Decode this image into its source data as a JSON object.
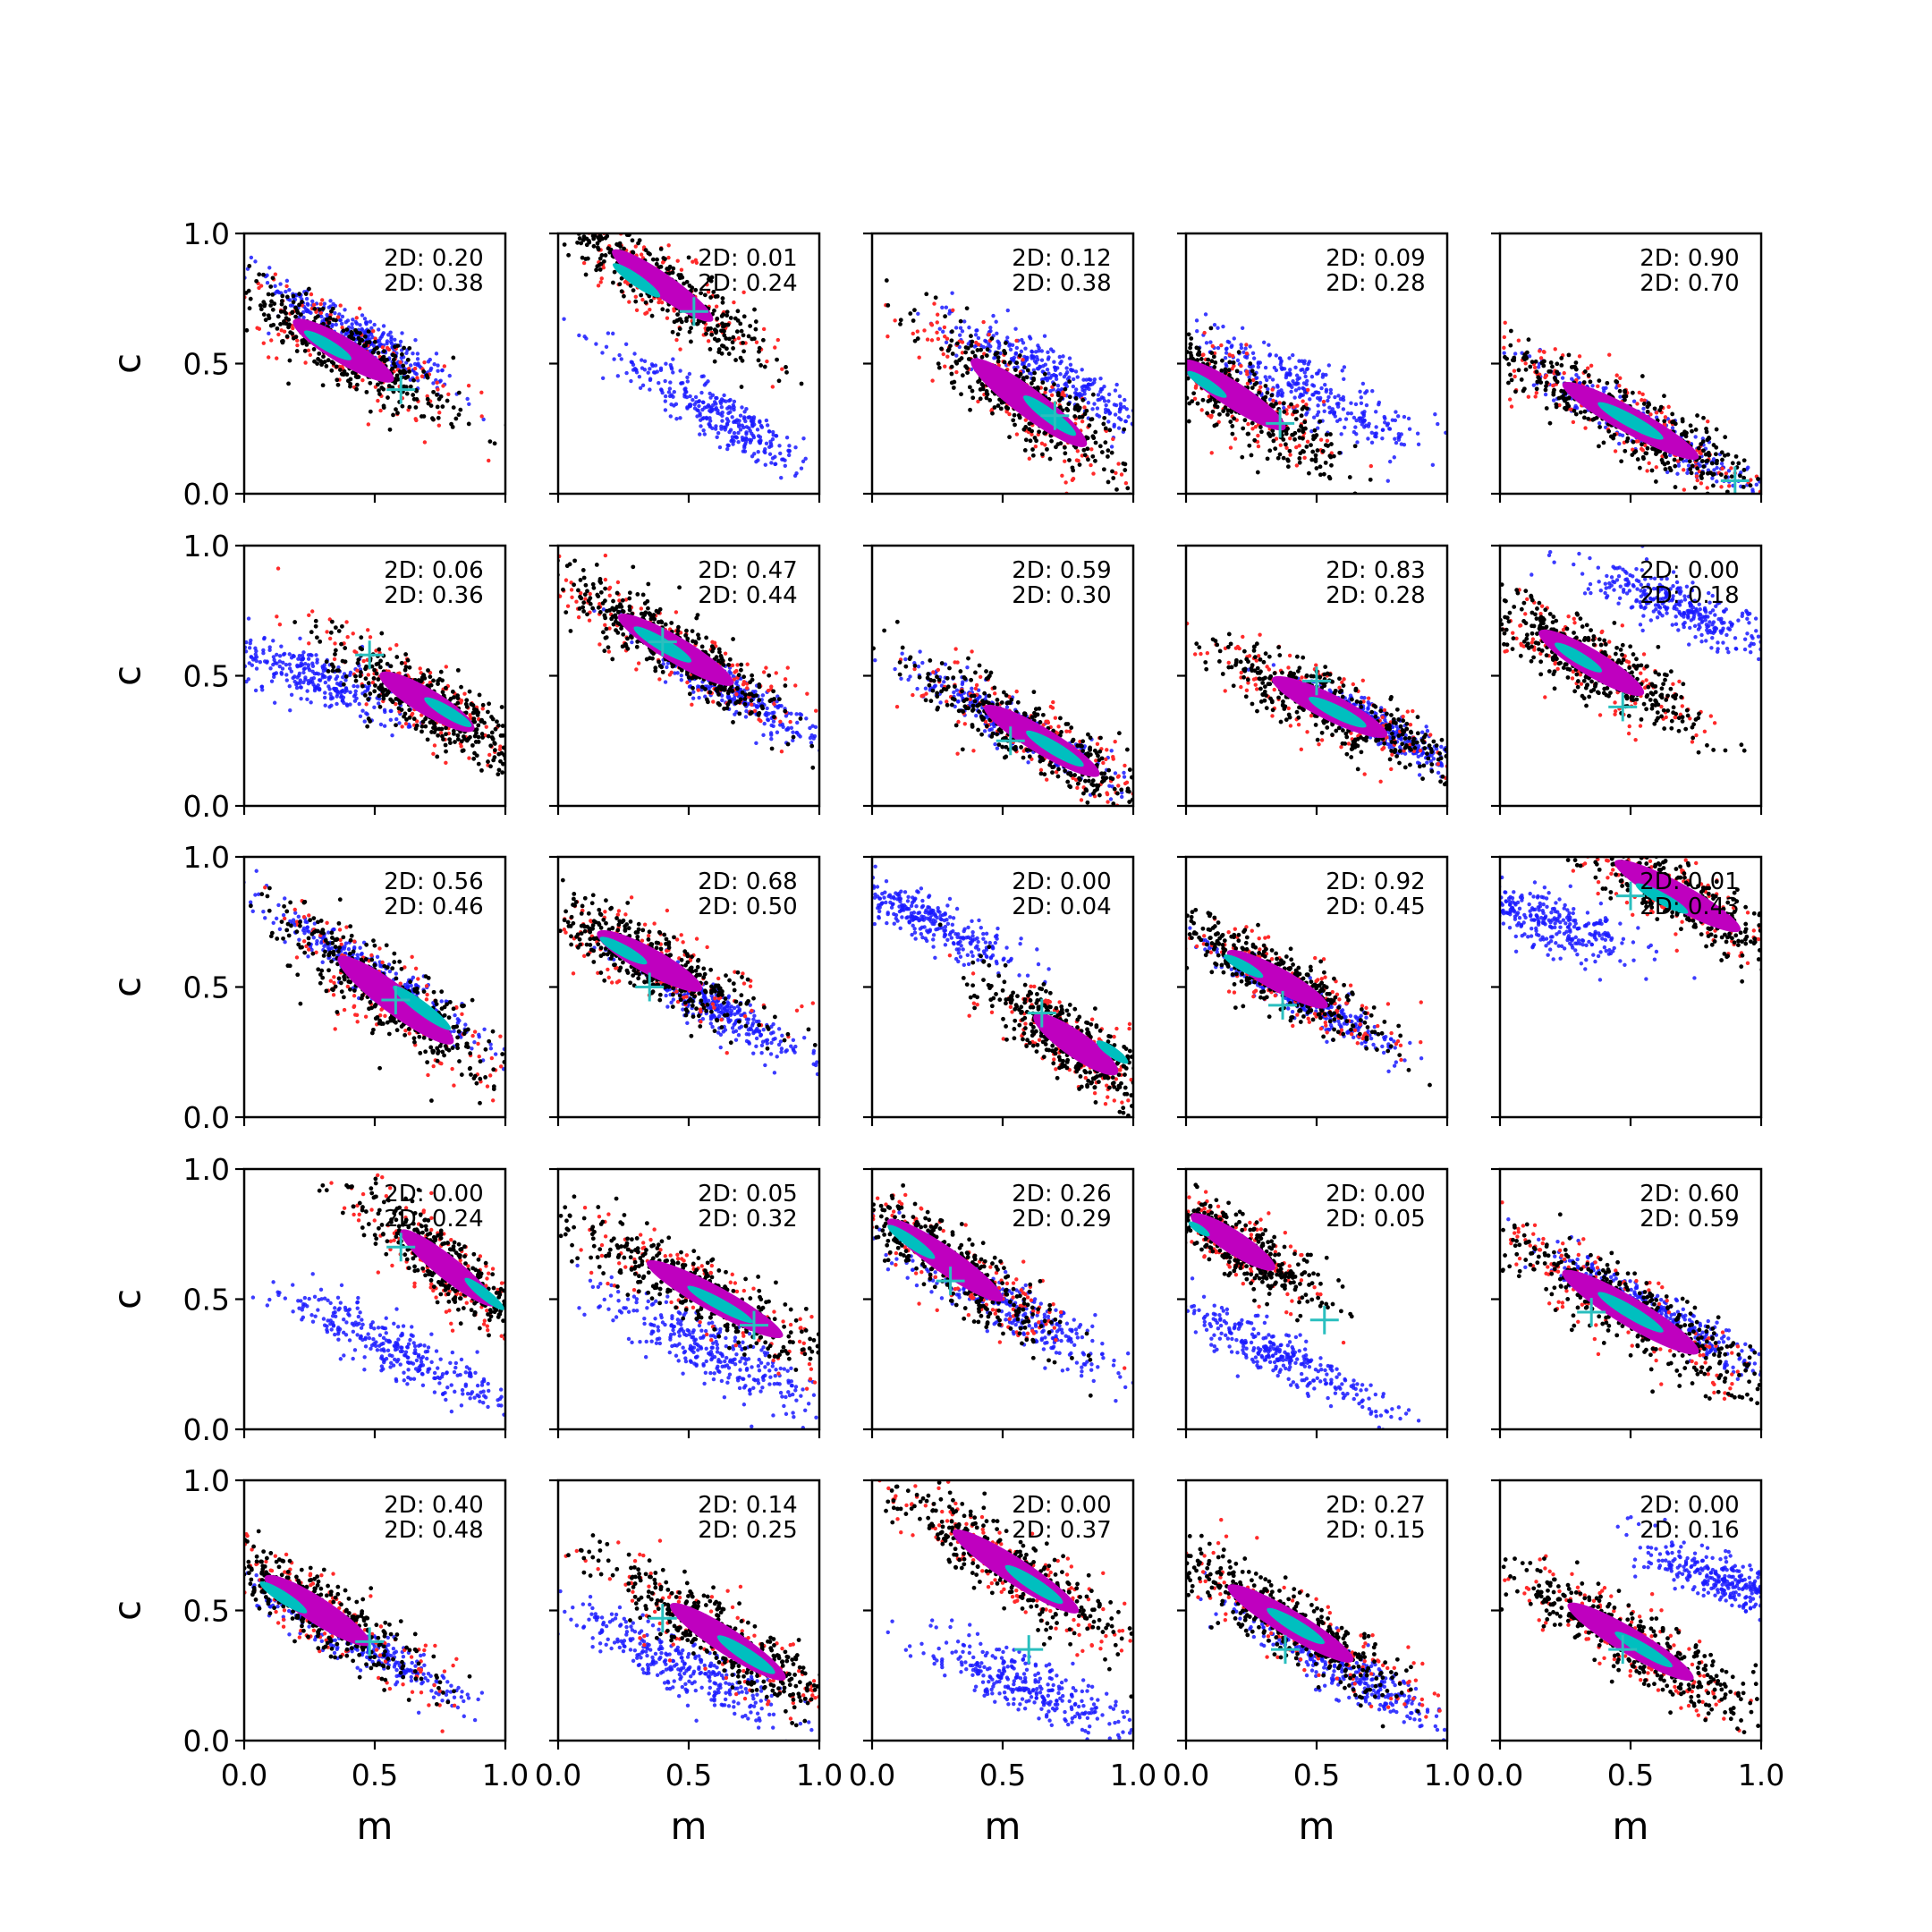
{
  "figure": {
    "xlabel": "m",
    "ylabel": "c",
    "xlim": [
      0,
      1
    ],
    "ylim": [
      0,
      1
    ],
    "xticks": [
      "0.0",
      "0.5",
      "1.0"
    ],
    "yticks": [
      "0.0",
      "0.5",
      "1.0"
    ],
    "colors": {
      "blue": "#1a1aff",
      "red": "#ff2a2a",
      "black": "#000000",
      "magenta": "#bf00bf",
      "cyan": "#00bfbf",
      "marker": "#2abfbf"
    },
    "marker_symbol": "plus"
  },
  "chart_data": [
    {
      "type": "scatter",
      "row": 0,
      "col": 0,
      "annotations": [
        "2D: 0.20",
        "2D: 0.38"
      ],
      "true_point": {
        "m": 0.6,
        "c": 0.4
      },
      "blue": {
        "cx": 0.45,
        "cy": 0.6,
        "slope": -0.6,
        "length": 0.45,
        "width": 0.09
      },
      "inner": {
        "cx": 0.38,
        "cy": 0.55,
        "slope": -0.6,
        "length": 0.48,
        "width": 0.1
      },
      "cyan": {
        "cx": 0.32,
        "cy": 0.57,
        "length": 0.18,
        "width": 0.045
      },
      "true_point_hidden": false
    },
    {
      "type": "scatter",
      "row": 0,
      "col": 1,
      "annotations": [
        "2D: 0.01",
        "2D: 0.24"
      ],
      "true_point": {
        "m": 0.52,
        "c": 0.7
      },
      "blue": {
        "cx": 0.62,
        "cy": 0.3,
        "slope": -0.6,
        "length": 0.5,
        "width": 0.1
      },
      "inner": {
        "cx": 0.4,
        "cy": 0.8,
        "slope": -0.7,
        "length": 0.48,
        "width": 0.09
      },
      "cyan": {
        "cx": 0.3,
        "cy": 0.82,
        "length": 0.18,
        "width": 0.045
      }
    },
    {
      "type": "scatter",
      "row": 0,
      "col": 2,
      "annotations": [
        "2D: 0.12",
        "2D: 0.38"
      ],
      "true_point": {
        "m": 0.7,
        "c": 0.3
      },
      "blue": {
        "cx": 0.7,
        "cy": 0.45,
        "slope": -0.55,
        "length": 0.55,
        "width": 0.11
      },
      "inner": {
        "cx": 0.6,
        "cy": 0.35,
        "slope": -0.75,
        "length": 0.55,
        "width": 0.11
      },
      "cyan": {
        "cx": 0.68,
        "cy": 0.3,
        "length": 0.2,
        "width": 0.05
      }
    },
    {
      "type": "scatter",
      "row": 0,
      "col": 3,
      "annotations": [
        "2D: 0.09",
        "2D: 0.28"
      ],
      "true_point": {
        "m": 0.36,
        "c": 0.27
      },
      "blue": {
        "cx": 0.45,
        "cy": 0.4,
        "slope": -0.5,
        "length": 0.6,
        "width": 0.11
      },
      "inner": {
        "cx": 0.18,
        "cy": 0.38,
        "slope": -0.65,
        "length": 0.5,
        "width": 0.1
      },
      "cyan": {
        "cx": 0.08,
        "cy": 0.42,
        "length": 0.15,
        "width": 0.04
      }
    },
    {
      "type": "scatter",
      "row": 0,
      "col": 4,
      "annotations": [
        "2D: 0.90",
        "2D: 0.70"
      ],
      "true_point": {
        "m": 0.9,
        "c": 0.05
      },
      "blue": {
        "cx": 0.55,
        "cy": 0.25,
        "slope": -0.55,
        "length": 0.6,
        "width": 0.08
      },
      "inner": {
        "cx": 0.5,
        "cy": 0.28,
        "slope": -0.55,
        "length": 0.65,
        "width": 0.1
      },
      "cyan": {
        "cx": 0.5,
        "cy": 0.28,
        "length": 0.25,
        "width": 0.05
      }
    },
    {
      "type": "scatter",
      "row": 1,
      "col": 0,
      "annotations": [
        "2D: 0.06",
        "2D: 0.36"
      ],
      "true_point": {
        "m": 0.48,
        "c": 0.58
      },
      "blue": {
        "cx": 0.25,
        "cy": 0.5,
        "slope": -0.4,
        "length": 0.45,
        "width": 0.12
      },
      "inner": {
        "cx": 0.7,
        "cy": 0.4,
        "slope": -0.6,
        "length": 0.45,
        "width": 0.1
      },
      "cyan": {
        "cx": 0.78,
        "cy": 0.36,
        "length": 0.18,
        "width": 0.045
      }
    },
    {
      "type": "scatter",
      "row": 1,
      "col": 1,
      "annotations": [
        "2D: 0.47",
        "2D: 0.44"
      ],
      "true_point": {
        "m": 0.4,
        "c": 0.63
      },
      "blue": {
        "cx": 0.65,
        "cy": 0.45,
        "slope": -0.6,
        "length": 0.45,
        "width": 0.08
      },
      "inner": {
        "cx": 0.45,
        "cy": 0.6,
        "slope": -0.6,
        "length": 0.55,
        "width": 0.1
      },
      "cyan": {
        "cx": 0.4,
        "cy": 0.62,
        "length": 0.22,
        "width": 0.05
      }
    },
    {
      "type": "scatter",
      "row": 1,
      "col": 2,
      "annotations": [
        "2D: 0.59",
        "2D: 0.30"
      ],
      "true_point": {
        "m": 0.53,
        "c": 0.25
      },
      "blue": {
        "cx": 0.55,
        "cy": 0.3,
        "slope": -0.55,
        "length": 0.5,
        "width": 0.08
      },
      "inner": {
        "cx": 0.65,
        "cy": 0.25,
        "slope": -0.6,
        "length": 0.55,
        "width": 0.1
      },
      "cyan": {
        "cx": 0.7,
        "cy": 0.22,
        "length": 0.22,
        "width": 0.05
      }
    },
    {
      "type": "scatter",
      "row": 1,
      "col": 3,
      "annotations": [
        "2D: 0.83",
        "2D: 0.28"
      ],
      "true_point": {
        "m": 0.5,
        "c": 0.48
      },
      "blue": {
        "cx": 0.75,
        "cy": 0.3,
        "slope": -0.55,
        "length": 0.4,
        "width": 0.07
      },
      "inner": {
        "cx": 0.55,
        "cy": 0.38,
        "slope": -0.5,
        "length": 0.55,
        "width": 0.1
      },
      "cyan": {
        "cx": 0.58,
        "cy": 0.36,
        "length": 0.22,
        "width": 0.05
      }
    },
    {
      "type": "scatter",
      "row": 1,
      "col": 4,
      "annotations": [
        "2D: 0.00",
        "2D: 0.18"
      ],
      "true_point": {
        "m": 0.47,
        "c": 0.38
      },
      "blue": {
        "cx": 0.7,
        "cy": 0.75,
        "slope": -0.4,
        "length": 0.45,
        "width": 0.1
      },
      "inner": {
        "cx": 0.35,
        "cy": 0.55,
        "slope": -0.6,
        "length": 0.5,
        "width": 0.1
      },
      "cyan": {
        "cx": 0.3,
        "cy": 0.57,
        "length": 0.18,
        "width": 0.045
      }
    },
    {
      "type": "scatter",
      "row": 2,
      "col": 0,
      "annotations": [
        "2D: 0.56",
        "2D: 0.46"
      ],
      "true_point": {
        "m": 0.58,
        "c": 0.45
      },
      "blue": {
        "cx": 0.5,
        "cy": 0.55,
        "slope": -0.65,
        "length": 0.55,
        "width": 0.08
      },
      "inner": {
        "cx": 0.58,
        "cy": 0.45,
        "slope": -0.75,
        "length": 0.55,
        "width": 0.11
      },
      "cyan": {
        "cx": 0.68,
        "cy": 0.42,
        "length": 0.22,
        "width": 0.05
      }
    },
    {
      "type": "scatter",
      "row": 2,
      "col": 1,
      "annotations": [
        "2D: 0.68",
        "2D: 0.50"
      ],
      "true_point": {
        "m": 0.35,
        "c": 0.5
      },
      "blue": {
        "cx": 0.6,
        "cy": 0.42,
        "slope": -0.55,
        "length": 0.45,
        "width": 0.08
      },
      "inner": {
        "cx": 0.35,
        "cy": 0.6,
        "slope": -0.55,
        "length": 0.5,
        "width": 0.1
      },
      "cyan": {
        "cx": 0.25,
        "cy": 0.64,
        "length": 0.18,
        "width": 0.045
      }
    },
    {
      "type": "scatter",
      "row": 2,
      "col": 2,
      "annotations": [
        "2D: 0.00",
        "2D: 0.04"
      ],
      "true_point": {
        "m": 0.65,
        "c": 0.4
      },
      "blue": {
        "cx": 0.2,
        "cy": 0.76,
        "slope": -0.45,
        "length": 0.45,
        "width": 0.09
      },
      "inner": {
        "cx": 0.78,
        "cy": 0.28,
        "slope": -0.7,
        "length": 0.4,
        "width": 0.1
      },
      "cyan": {
        "cx": 0.92,
        "cy": 0.25,
        "length": 0.12,
        "width": 0.04
      }
    },
    {
      "type": "scatter",
      "row": 2,
      "col": 3,
      "annotations": [
        "2D: 0.92",
        "2D: 0.45"
      ],
      "true_point": {
        "m": 0.37,
        "c": 0.43
      },
      "blue": {
        "cx": 0.45,
        "cy": 0.45,
        "slope": -0.55,
        "length": 0.45,
        "width": 0.07
      },
      "inner": {
        "cx": 0.35,
        "cy": 0.53,
        "slope": -0.55,
        "length": 0.48,
        "width": 0.09
      },
      "cyan": {
        "cx": 0.22,
        "cy": 0.58,
        "length": 0.15,
        "width": 0.04
      }
    },
    {
      "type": "scatter",
      "row": 2,
      "col": 4,
      "annotations": [
        "2D: 0.01",
        "2D: 0.43"
      ],
      "true_point": {
        "m": 0.5,
        "c": 0.85
      },
      "blue": {
        "cx": 0.18,
        "cy": 0.75,
        "slope": -0.35,
        "length": 0.4,
        "width": 0.12
      },
      "inner": {
        "cx": 0.68,
        "cy": 0.85,
        "slope": -0.55,
        "length": 0.6,
        "width": 0.1
      },
      "cyan": {
        "cx": 0.62,
        "cy": 0.84,
        "length": 0.2,
        "width": 0.045
      }
    },
    {
      "type": "scatter",
      "row": 3,
      "col": 0,
      "annotations": [
        "2D: 0.00",
        "2D: 0.24"
      ],
      "true_point": {
        "m": 0.6,
        "c": 0.7
      },
      "blue": {
        "cx": 0.6,
        "cy": 0.3,
        "slope": -0.5,
        "length": 0.6,
        "width": 0.1
      },
      "inner": {
        "cx": 0.78,
        "cy": 0.62,
        "slope": -0.8,
        "length": 0.45,
        "width": 0.09
      },
      "cyan": {
        "cx": 0.92,
        "cy": 0.52,
        "length": 0.15,
        "width": 0.04
      }
    },
    {
      "type": "scatter",
      "row": 3,
      "col": 1,
      "annotations": [
        "2D: 0.05",
        "2D: 0.32"
      ],
      "true_point": {
        "m": 0.75,
        "c": 0.4
      },
      "blue": {
        "cx": 0.6,
        "cy": 0.3,
        "slope": -0.5,
        "length": 0.55,
        "width": 0.12
      },
      "inner": {
        "cx": 0.6,
        "cy": 0.5,
        "slope": -0.55,
        "length": 0.65,
        "width": 0.1
      },
      "cyan": {
        "cx": 0.62,
        "cy": 0.48,
        "length": 0.25,
        "width": 0.045
      }
    },
    {
      "type": "scatter",
      "row": 3,
      "col": 2,
      "annotations": [
        "2D: 0.26",
        "2D: 0.29"
      ],
      "true_point": {
        "m": 0.3,
        "c": 0.57
      },
      "blue": {
        "cx": 0.55,
        "cy": 0.45,
        "slope": -0.55,
        "length": 0.6,
        "width": 0.1
      },
      "inner": {
        "cx": 0.28,
        "cy": 0.65,
        "slope": -0.7,
        "length": 0.55,
        "width": 0.1
      },
      "cyan": {
        "cx": 0.15,
        "cy": 0.72,
        "length": 0.18,
        "width": 0.045
      }
    },
    {
      "type": "scatter",
      "row": 3,
      "col": 3,
      "annotations": [
        "2D: 0.00",
        "2D: 0.05"
      ],
      "true_point": {
        "m": 0.53,
        "c": 0.42
      },
      "blue": {
        "cx": 0.32,
        "cy": 0.3,
        "slope": -0.5,
        "length": 0.55,
        "width": 0.1
      },
      "inner": {
        "cx": 0.18,
        "cy": 0.72,
        "slope": -0.65,
        "length": 0.4,
        "width": 0.09
      },
      "cyan": {
        "cx": 0.05,
        "cy": 0.77,
        "length": 0.08,
        "width": 0.03
      }
    },
    {
      "type": "scatter",
      "row": 3,
      "col": 4,
      "annotations": [
        "2D: 0.60",
        "2D: 0.59"
      ],
      "true_point": {
        "m": 0.35,
        "c": 0.45
      },
      "blue": {
        "cx": 0.6,
        "cy": 0.45,
        "slope": -0.55,
        "length": 0.55,
        "width": 0.08
      },
      "inner": {
        "cx": 0.5,
        "cy": 0.45,
        "slope": -0.6,
        "length": 0.65,
        "width": 0.11
      },
      "cyan": {
        "cx": 0.5,
        "cy": 0.45,
        "length": 0.25,
        "width": 0.05
      }
    },
    {
      "type": "scatter",
      "row": 4,
      "col": 0,
      "annotations": [
        "2D: 0.40",
        "2D: 0.48"
      ],
      "true_point": {
        "m": 0.48,
        "c": 0.38
      },
      "blue": {
        "cx": 0.42,
        "cy": 0.38,
        "slope": -0.55,
        "length": 0.55,
        "width": 0.08
      },
      "inner": {
        "cx": 0.28,
        "cy": 0.5,
        "slope": -0.65,
        "length": 0.5,
        "width": 0.1
      },
      "cyan": {
        "cx": 0.15,
        "cy": 0.55,
        "length": 0.18,
        "width": 0.045
      }
    },
    {
      "type": "scatter",
      "row": 4,
      "col": 1,
      "annotations": [
        "2D: 0.14",
        "2D: 0.25"
      ],
      "true_point": {
        "m": 0.4,
        "c": 0.47
      },
      "blue": {
        "cx": 0.45,
        "cy": 0.3,
        "slope": -0.5,
        "length": 0.55,
        "width": 0.12
      },
      "inner": {
        "cx": 0.65,
        "cy": 0.38,
        "slope": -0.65,
        "length": 0.55,
        "width": 0.1
      },
      "cyan": {
        "cx": 0.72,
        "cy": 0.33,
        "length": 0.22,
        "width": 0.05
      }
    },
    {
      "type": "scatter",
      "row": 4,
      "col": 2,
      "annotations": [
        "2D: 0.00",
        "2D: 0.37"
      ],
      "true_point": {
        "m": 0.6,
        "c": 0.35
      },
      "blue": {
        "cx": 0.58,
        "cy": 0.22,
        "slope": -0.45,
        "length": 0.55,
        "width": 0.11
      },
      "inner": {
        "cx": 0.55,
        "cy": 0.65,
        "slope": -0.65,
        "length": 0.6,
        "width": 0.1
      },
      "cyan": {
        "cx": 0.62,
        "cy": 0.6,
        "length": 0.22,
        "width": 0.05
      }
    },
    {
      "type": "scatter",
      "row": 4,
      "col": 3,
      "annotations": [
        "2D: 0.27",
        "2D: 0.15"
      ],
      "true_point": {
        "m": 0.38,
        "c": 0.35
      },
      "blue": {
        "cx": 0.6,
        "cy": 0.28,
        "slope": -0.55,
        "length": 0.55,
        "width": 0.09
      },
      "inner": {
        "cx": 0.4,
        "cy": 0.45,
        "slope": -0.6,
        "length": 0.6,
        "width": 0.1
      },
      "cyan": {
        "cx": 0.42,
        "cy": 0.44,
        "length": 0.22,
        "width": 0.05
      }
    },
    {
      "type": "scatter",
      "row": 4,
      "col": 4,
      "annotations": [
        "2D: 0.00",
        "2D: 0.16"
      ],
      "true_point": {
        "m": 0.47,
        "c": 0.35
      },
      "blue": {
        "cx": 0.85,
        "cy": 0.62,
        "slope": -0.4,
        "length": 0.35,
        "width": 0.1
      },
      "inner": {
        "cx": 0.5,
        "cy": 0.38,
        "slope": -0.6,
        "length": 0.6,
        "width": 0.1
      },
      "cyan": {
        "cx": 0.55,
        "cy": 0.35,
        "length": 0.22,
        "width": 0.045
      }
    }
  ]
}
